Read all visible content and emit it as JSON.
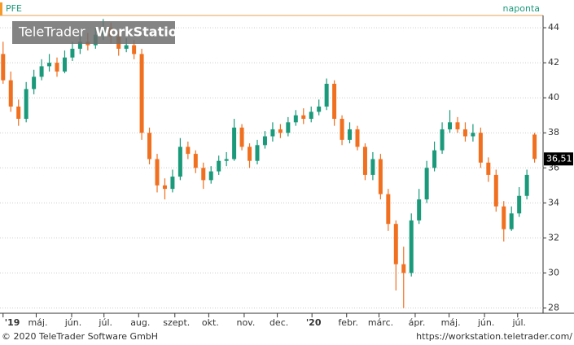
{
  "chart_data": {
    "type": "candlestick",
    "title": "PFE",
    "subtitle": "naponta",
    "watermark": [
      "TeleTrader",
      "WorkStation"
    ],
    "footer_left": "© 2020 TeleTrader Software GmbH",
    "footer_right": "https://workstation.teletrader.com/",
    "last_price_label": "36,51",
    "up_color": "#1a9a7a",
    "down_color": "#f07020",
    "grid": true,
    "xlim": [
      -0.4,
      70.1
    ],
    "ylim": [
      27.7,
      44.7
    ],
    "yticks": [
      28,
      30,
      32,
      34,
      36,
      38,
      40,
      42,
      44
    ],
    "xticks": [
      {
        "value": 0,
        "label": "'19"
      },
      {
        "value": 4.3,
        "label": "máj."
      },
      {
        "value": 8.9,
        "label": "jún."
      },
      {
        "value": 13.1,
        "label": "júl."
      },
      {
        "value": 17.6,
        "label": "aug."
      },
      {
        "value": 22.3,
        "label": "szept."
      },
      {
        "value": 26.7,
        "label": "okt."
      },
      {
        "value": 31.3,
        "label": "nov."
      },
      {
        "value": 35.6,
        "label": "dec."
      },
      {
        "value": 40.1,
        "label": "'20"
      },
      {
        "value": 44.6,
        "label": "febr."
      },
      {
        "value": 48.8,
        "label": "márc."
      },
      {
        "value": 53.5,
        "label": "ápr."
      },
      {
        "value": 57.9,
        "label": "máj."
      },
      {
        "value": 62.5,
        "label": "jún."
      },
      {
        "value": 66.8,
        "label": "júl."
      }
    ],
    "series": [
      {
        "name": "PFE",
        "open": [
          42.5,
          41.0,
          39.5,
          38.8,
          40.5,
          41.2,
          41.8,
          42.0,
          41.5,
          42.3,
          42.8,
          43.2,
          43.0,
          43.6,
          44.0,
          43.5,
          42.8,
          43.0,
          42.5,
          38.0,
          36.5,
          35.0,
          34.8,
          35.5,
          37.2,
          36.8,
          36.0,
          35.3,
          35.8,
          36.4,
          36.5,
          38.3,
          37.2,
          36.4,
          37.3,
          37.8,
          38.2,
          38.0,
          38.6,
          39.0,
          38.8,
          39.2,
          39.5,
          40.8,
          38.8,
          37.6,
          38.2,
          37.2,
          35.6,
          36.5,
          34.5,
          32.8,
          30.5,
          30.0,
          33.0,
          34.2,
          36.0,
          37.0,
          38.2,
          38.6,
          38.2,
          37.8,
          38.0,
          36.3,
          35.6,
          33.8,
          32.5,
          33.4,
          34.4,
          37.9
        ],
        "high": [
          43.2,
          41.5,
          39.9,
          40.9,
          41.6,
          42.2,
          42.5,
          42.3,
          42.7,
          43.2,
          43.6,
          43.7,
          44.0,
          44.5,
          44.3,
          43.8,
          43.4,
          43.3,
          42.8,
          38.3,
          36.8,
          35.4,
          35.9,
          37.7,
          37.5,
          37.0,
          36.3,
          36.1,
          36.7,
          36.9,
          38.8,
          38.5,
          37.4,
          37.6,
          38.1,
          38.6,
          38.5,
          38.9,
          39.3,
          39.4,
          39.5,
          39.9,
          41.1,
          41.0,
          39.0,
          38.6,
          38.4,
          37.4,
          36.9,
          36.8,
          34.8,
          33.0,
          31.5,
          33.4,
          34.8,
          36.4,
          37.5,
          38.6,
          39.3,
          38.9,
          38.6,
          38.5,
          38.3,
          36.6,
          35.9,
          34.1,
          33.8,
          34.9,
          35.9,
          38.0
        ],
        "low": [
          40.8,
          39.2,
          38.4,
          38.6,
          40.2,
          41.0,
          41.5,
          41.2,
          41.4,
          42.1,
          42.5,
          42.7,
          42.8,
          43.3,
          43.1,
          42.4,
          42.6,
          42.2,
          37.6,
          36.2,
          34.6,
          34.2,
          34.6,
          35.3,
          36.5,
          35.7,
          34.8,
          35.1,
          35.6,
          36.1,
          36.4,
          37.0,
          36.0,
          36.2,
          37.1,
          37.5,
          37.7,
          37.8,
          38.4,
          38.5,
          38.6,
          39.0,
          39.3,
          38.4,
          37.3,
          37.4,
          37.0,
          35.3,
          35.3,
          34.2,
          32.4,
          29.0,
          28.0,
          29.8,
          32.8,
          34.0,
          35.8,
          36.8,
          38.0,
          38.0,
          37.5,
          37.5,
          36.0,
          35.2,
          33.5,
          31.8,
          32.4,
          33.2,
          34.2,
          36.3
        ],
        "close": [
          41.0,
          39.5,
          38.8,
          40.5,
          41.2,
          41.8,
          42.0,
          41.5,
          42.3,
          42.8,
          43.2,
          43.0,
          43.6,
          44.0,
          43.5,
          42.8,
          43.0,
          42.5,
          38.0,
          36.5,
          35.0,
          34.8,
          35.5,
          37.2,
          36.8,
          36.0,
          35.3,
          35.8,
          36.4,
          36.5,
          38.3,
          37.2,
          36.4,
          37.3,
          37.8,
          38.2,
          38.0,
          38.6,
          39.0,
          38.8,
          39.2,
          39.5,
          40.8,
          38.8,
          37.6,
          38.2,
          37.2,
          35.6,
          36.5,
          34.5,
          32.8,
          30.5,
          30.0,
          33.0,
          34.2,
          36.0,
          37.0,
          38.2,
          38.6,
          38.2,
          37.8,
          38.0,
          36.3,
          35.6,
          33.8,
          32.5,
          33.4,
          34.4,
          35.6,
          36.51
        ]
      }
    ]
  }
}
